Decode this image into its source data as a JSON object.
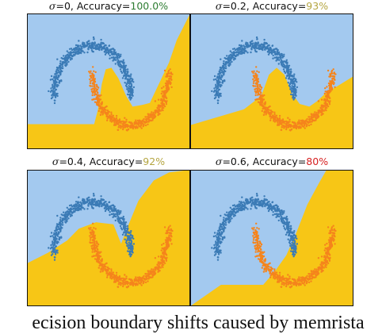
{
  "colors": {
    "region_top": "#a3c9ef",
    "region_bottom": "#f7c616",
    "class_upper": "#3b7bb6",
    "class_lower": "#f5841c",
    "acc_green": "#2e7d32",
    "acc_olive": "#b5a642",
    "acc_red": "#d62020"
  },
  "chart_data": [
    {
      "type": "scatter",
      "title": {
        "sigma_symbol": "σ",
        "sigma_value": "=0",
        "acc_prefix": ", Accuracy=",
        "acc_value": "100.0%",
        "acc_color": "#2e7d32"
      },
      "sigma": 0,
      "accuracy_percent": 100.0,
      "series": [
        {
          "class": "upper moon"
        },
        {
          "class": "lower moon"
        }
      ],
      "boundary": [
        [
          0.05,
          -0.48
        ],
        [
          0.15,
          -0.2
        ],
        [
          0.25,
          0.28
        ],
        [
          0.35,
          0.55
        ],
        [
          0.5,
          0.58
        ],
        [
          0.68,
          0.38
        ],
        [
          0.88,
          0.05
        ],
        [
          1.05,
          -0.15
        ],
        [
          1.3,
          -0.12
        ],
        [
          1.5,
          -0.08
        ],
        [
          1.75,
          0.3
        ],
        [
          2.0,
          0.68
        ],
        [
          2.2,
          1.1
        ],
        [
          2.55,
          1.6
        ]
      ]
    },
    {
      "type": "scatter",
      "title": {
        "sigma_symbol": "σ",
        "sigma_value": "=0.2",
        "acc_prefix": ", Accuracy=",
        "acc_value": "93%",
        "acc_color": "#b5a642"
      },
      "sigma": 0.2,
      "accuracy_percent": 93,
      "series": [
        {
          "class": "upper moon"
        },
        {
          "class": "lower moon"
        }
      ],
      "boundary": [
        [
          -1.7,
          -0.5
        ],
        [
          -0.3,
          -0.2
        ],
        [
          0.15,
          0.05
        ],
        [
          0.35,
          0.45
        ],
        [
          0.55,
          0.58
        ],
        [
          0.75,
          0.45
        ],
        [
          0.95,
          0.1
        ],
        [
          1.15,
          -0.1
        ],
        [
          1.4,
          -0.15
        ],
        [
          1.6,
          -0.05
        ],
        [
          1.85,
          0.12
        ],
        [
          2.1,
          0.22
        ],
        [
          2.55,
          0.42
        ]
      ]
    },
    {
      "type": "scatter",
      "title": {
        "sigma_symbol": "σ",
        "sigma_value": "=0.4",
        "acc_prefix": ", Accuracy=",
        "acc_value": "92%",
        "acc_color": "#b5a642"
      },
      "sigma": 0.4,
      "accuracy_percent": 92,
      "series": [
        {
          "class": "upper moon"
        },
        {
          "class": "lower moon"
        }
      ],
      "boundary": [
        [
          -1.7,
          -0.15
        ],
        [
          -1.15,
          0.05
        ],
        [
          -0.65,
          0.28
        ],
        [
          -0.35,
          0.5
        ],
        [
          0.1,
          0.62
        ],
        [
          0.55,
          0.58
        ],
        [
          0.75,
          0.22
        ],
        [
          0.95,
          0.58
        ],
        [
          1.2,
          1.02
        ],
        [
          1.6,
          1.4
        ],
        [
          2.0,
          1.55
        ],
        [
          2.55,
          1.6
        ]
      ]
    },
    {
      "type": "scatter",
      "title": {
        "sigma_symbol": "σ",
        "sigma_value": "=0.6",
        "acc_prefix": ", Accuracy=",
        "acc_value": "80%",
        "acc_color": "#d62020"
      },
      "sigma": 0.6,
      "accuracy_percent": 80,
      "series": [
        {
          "class": "upper moon"
        },
        {
          "class": "lower moon"
        }
      ],
      "boundary": [
        [
          -1.7,
          -0.95
        ],
        [
          -0.9,
          -0.55
        ],
        [
          -0.2,
          -0.55
        ],
        [
          0.2,
          -0.55
        ],
        [
          0.5,
          -0.3
        ],
        [
          0.8,
          0.0
        ],
        [
          1.05,
          0.4
        ],
        [
          1.35,
          0.95
        ],
        [
          1.65,
          1.35
        ],
        [
          1.85,
          1.6
        ]
      ]
    }
  ],
  "caption": "ecision boundary shifts caused by memrista"
}
